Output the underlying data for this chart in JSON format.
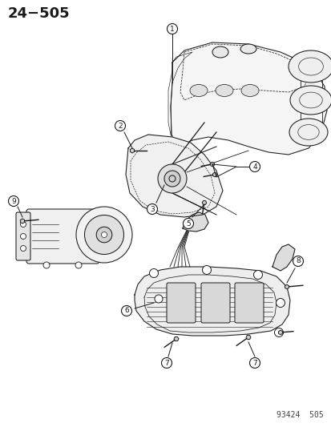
{
  "title": "24−505",
  "footer": "93424  505",
  "bg_color": "#ffffff",
  "line_color": "#1a1a1a",
  "title_fontsize": 13,
  "footer_fontsize": 7,
  "fig_width": 4.14,
  "fig_height": 5.33,
  "dpi": 100,
  "callout_r": 6.5,
  "callout_fontsize": 6.5
}
